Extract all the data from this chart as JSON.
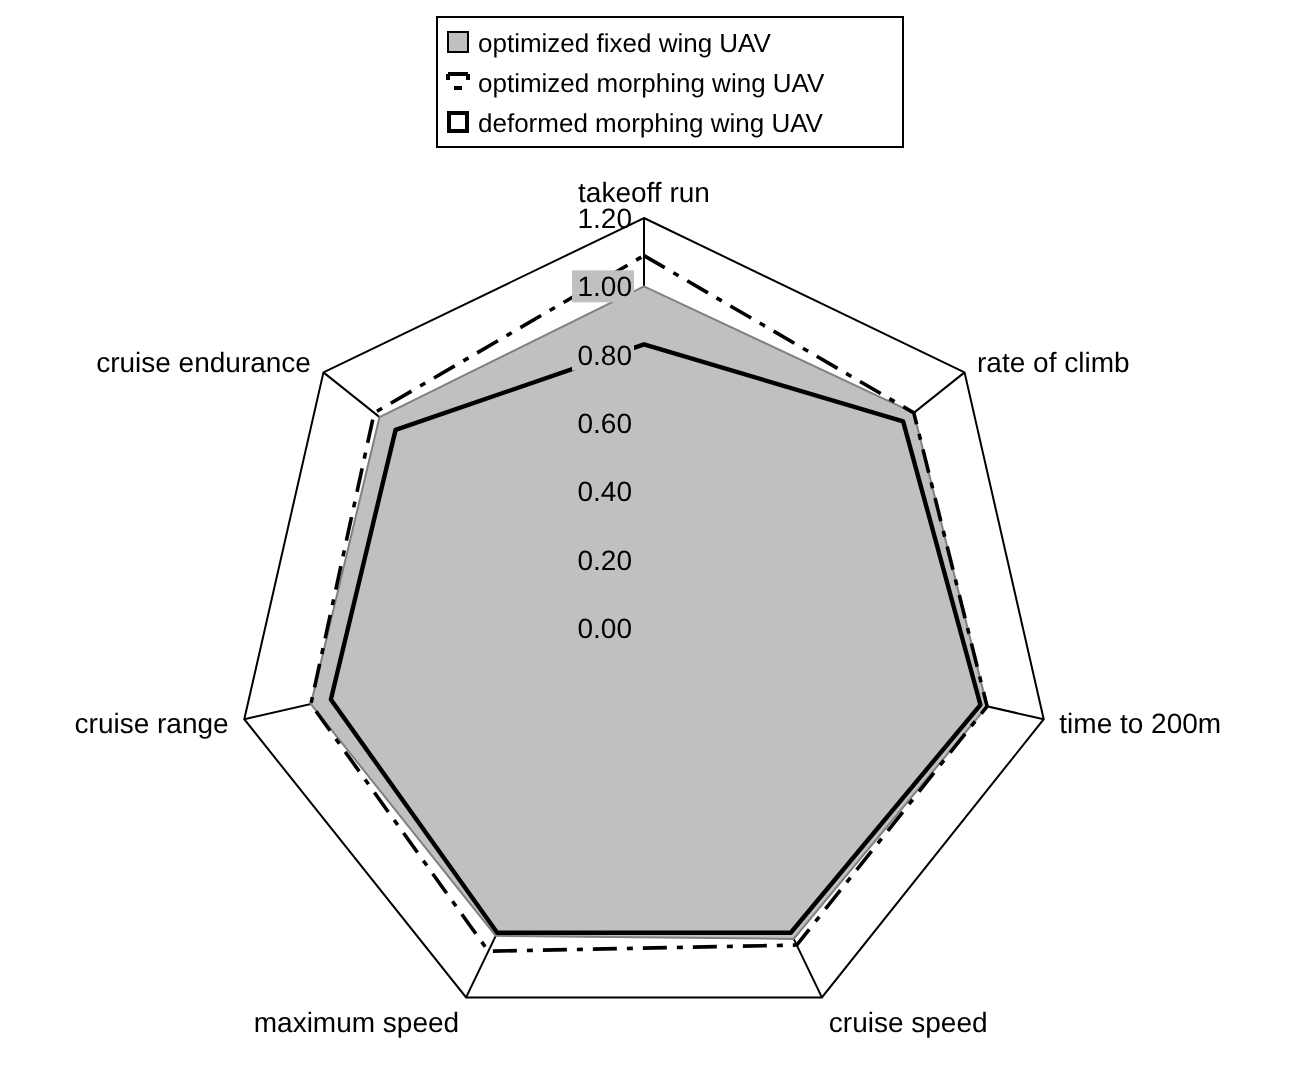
{
  "chart_data": {
    "type": "radar",
    "categories": [
      "takeoff run",
      "rate of climb",
      "time to 200m",
      "cruise speed",
      "maximum speed",
      "cruise range",
      "cruise endurance"
    ],
    "ylim": [
      0,
      1.2
    ],
    "yticks": [
      {
        "value": 0,
        "label": "0.00"
      },
      {
        "value": 0.2,
        "label": "0.20"
      },
      {
        "value": 0.4,
        "label": "0.40"
      },
      {
        "value": 0.6,
        "label": "0.60"
      },
      {
        "value": 0.8,
        "label": "0.80"
      },
      {
        "value": 1,
        "label": "1.00"
      },
      {
        "value": 1.2,
        "label": "1.20"
      }
    ],
    "grid": true,
    "legend": "top",
    "marker": "none",
    "series": [
      {
        "name": "optimized fixed wing UAV",
        "color": "#c0c0c0",
        "values": [
          1.0,
          1.01,
          1.03,
          1.01,
          1.0,
          1.0,
          0.99
        ]
      },
      {
        "name": "optimized morphing wing UAV",
        "color": "#000000",
        "line_style": "dashed",
        "values": [
          1.09,
          1.01,
          1.03,
          1.03,
          1.05,
          1.0,
          1.01
        ]
      },
      {
        "name": "deformed morphing wing UAV",
        "color": "#000000",
        "line_style": "solid",
        "values": [
          0.83,
          0.97,
          1.01,
          0.99,
          0.99,
          0.94,
          0.93
        ]
      }
    ]
  }
}
